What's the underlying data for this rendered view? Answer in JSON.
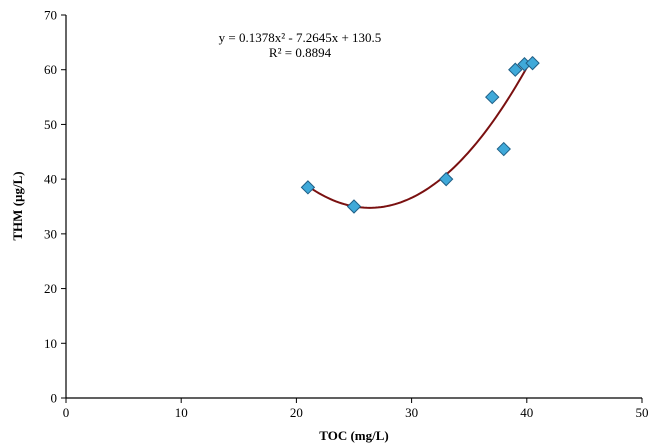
{
  "chart_data": {
    "type": "scatter",
    "xlabel": "TOC (mg/L)",
    "ylabel": "THM (µg/L)",
    "xlim": [
      0,
      50
    ],
    "ylim": [
      0,
      70
    ],
    "x_ticks": [
      0,
      10,
      20,
      30,
      40,
      50
    ],
    "y_ticks": [
      0,
      10,
      20,
      30,
      40,
      50,
      60,
      70
    ],
    "grid": false,
    "legend": "none",
    "marker_color": "#3fa9d9",
    "marker_edge_color": "#1f5f86",
    "trendline_color": "#7a1010",
    "series": [
      {
        "points": [
          {
            "x": 21,
            "y": 38.5
          },
          {
            "x": 25,
            "y": 35
          },
          {
            "x": 33,
            "y": 40
          },
          {
            "x": 37,
            "y": 55
          },
          {
            "x": 38,
            "y": 45.5
          },
          {
            "x": 39,
            "y": 60
          },
          {
            "x": 39.8,
            "y": 61
          },
          {
            "x": 40.5,
            "y": 61.2
          }
        ]
      }
    ],
    "trendline": {
      "type": "polynomial",
      "coefficients": [
        0.1378,
        -7.2645,
        130.5
      ],
      "x_range": [
        21,
        40.5
      ]
    },
    "annotations": {
      "equation": "y = 0.1378x² - 7.2645x + 130.5",
      "r_squared": "R² = 0.8894"
    }
  }
}
